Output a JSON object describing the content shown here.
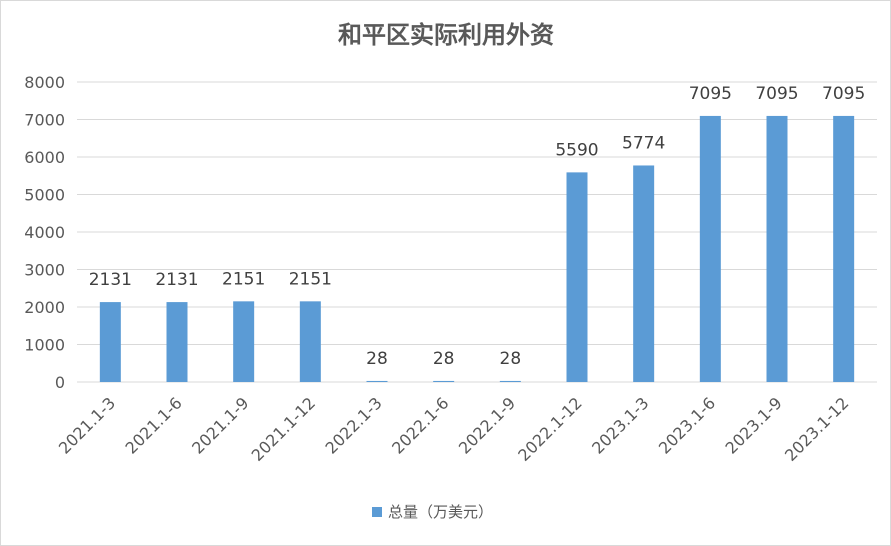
{
  "chart_data": {
    "type": "bar",
    "title": "和平区实际利用外资",
    "xlabel": "",
    "ylabel": "",
    "categories": [
      "2021.1-3",
      "2021.1-6",
      "2021.1-9",
      "2021.1-12",
      "2022.1-3",
      "2022.1-6",
      "2022.1-9",
      "2022.1-12",
      "2023.1-3",
      "2023.1-6",
      "2023.1-9",
      "2023.1-12"
    ],
    "series": [
      {
        "name": "总量（万美元）",
        "values": [
          2131,
          2131,
          2151,
          2151,
          28,
          28,
          28,
          5590,
          5774,
          7095,
          7095,
          7095
        ],
        "color": "#5b9bd5"
      }
    ],
    "yticks": [
      "0",
      "1000",
      "2000",
      "3000",
      "4000",
      "5000",
      "6000",
      "7000",
      "8000"
    ],
    "ylim": [
      0,
      8000
    ],
    "grid": true,
    "data_labels": true,
    "legend_position": "bottom",
    "colors": {
      "bar": "#5b9bd5",
      "grid": "#d9d9d9",
      "text": "#595959"
    }
  }
}
